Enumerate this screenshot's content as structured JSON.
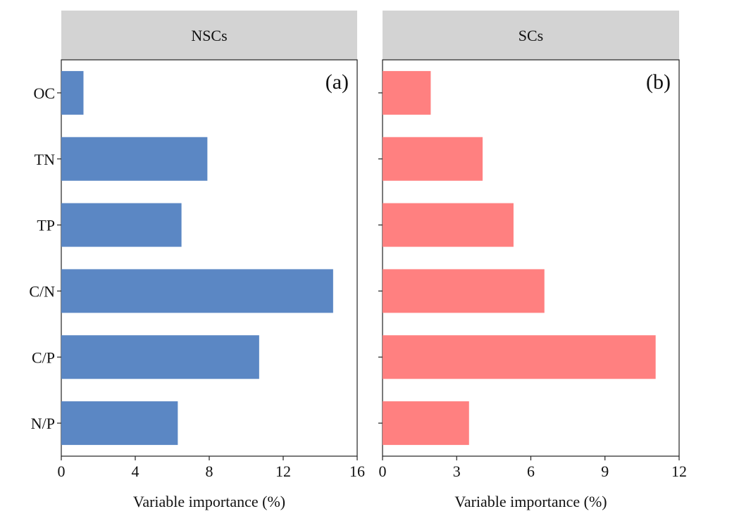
{
  "chart_data": [
    {
      "type": "bar",
      "orientation": "horizontal",
      "strip_title": "NSCs",
      "panel_label": "(a)",
      "categories": [
        "OC",
        "TN",
        "TP",
        "C/N",
        "C/P",
        "N/P"
      ],
      "values": [
        1.2,
        7.9,
        6.5,
        14.7,
        10.7,
        6.3
      ],
      "xlabel": "Variable importance (%)",
      "xlim": [
        0,
        16
      ],
      "xticks": [
        "0",
        "4",
        "8",
        "12",
        "16"
      ],
      "color": "#5b87c4"
    },
    {
      "type": "bar",
      "orientation": "horizontal",
      "strip_title": "SCs",
      "panel_label": "(b)",
      "categories": [
        "OC",
        "TN",
        "TP",
        "C/N",
        "C/P",
        "N/P"
      ],
      "values": [
        1.95,
        4.05,
        5.3,
        6.55,
        11.05,
        3.5
      ],
      "xlabel": "Variable importance (%)",
      "xlim": [
        0,
        12
      ],
      "xticks": [
        "0",
        "3",
        "6",
        "9",
        "12"
      ],
      "color": "#ff8080"
    }
  ]
}
